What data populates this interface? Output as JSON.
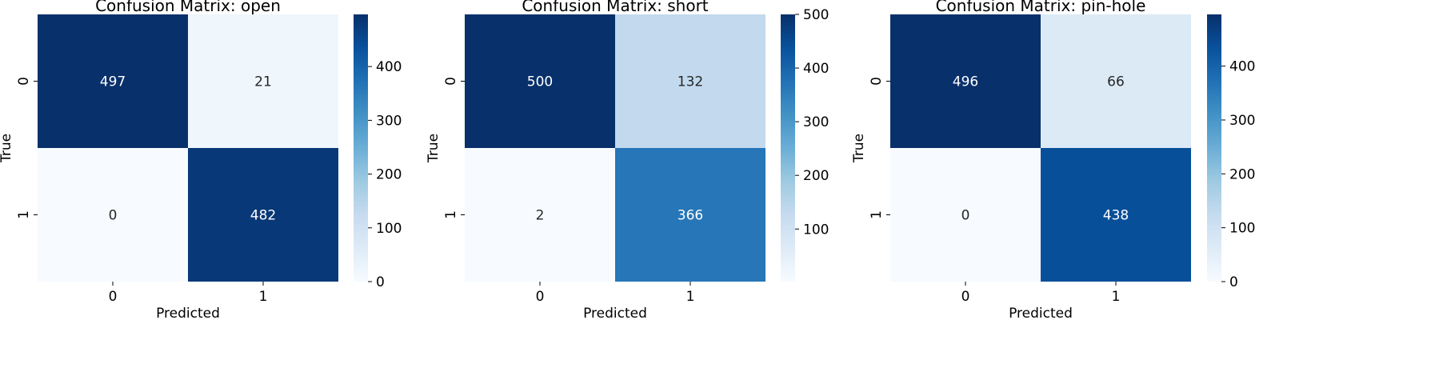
{
  "colormap": {
    "name": "Blues",
    "stops": [
      "#f7fbff",
      "#deebf7",
      "#c6dbef",
      "#9ecae1",
      "#6baed6",
      "#4292c6",
      "#2171b5",
      "#08519c",
      "#08306b"
    ]
  },
  "chart_data": [
    {
      "type": "heatmap",
      "title": "Confusion Matrix: open",
      "xlabel": "Predicted",
      "ylabel": "True",
      "x_categories": [
        "0",
        "1"
      ],
      "y_categories": [
        "0",
        "1"
      ],
      "values": [
        [
          497,
          21
        ],
        [
          0,
          482
        ]
      ],
      "colorbar": {
        "min": 0,
        "max": 497,
        "ticks": [
          0,
          100,
          200,
          300,
          400
        ]
      }
    },
    {
      "type": "heatmap",
      "title": "Confusion Matrix: short",
      "xlabel": "Predicted",
      "ylabel": "True",
      "x_categories": [
        "0",
        "1"
      ],
      "y_categories": [
        "0",
        "1"
      ],
      "values": [
        [
          500,
          132
        ],
        [
          2,
          366
        ]
      ],
      "colorbar": {
        "min": 2,
        "max": 500,
        "ticks": [
          100,
          200,
          300,
          400,
          500
        ]
      }
    },
    {
      "type": "heatmap",
      "title": "Confusion Matrix: pin-hole",
      "xlabel": "Predicted",
      "ylabel": "True",
      "x_categories": [
        "0",
        "1"
      ],
      "y_categories": [
        "0",
        "1"
      ],
      "values": [
        [
          496,
          66
        ],
        [
          0,
          438
        ]
      ],
      "colorbar": {
        "min": 0,
        "max": 496,
        "ticks": [
          0,
          100,
          200,
          300,
          400
        ]
      }
    }
  ]
}
